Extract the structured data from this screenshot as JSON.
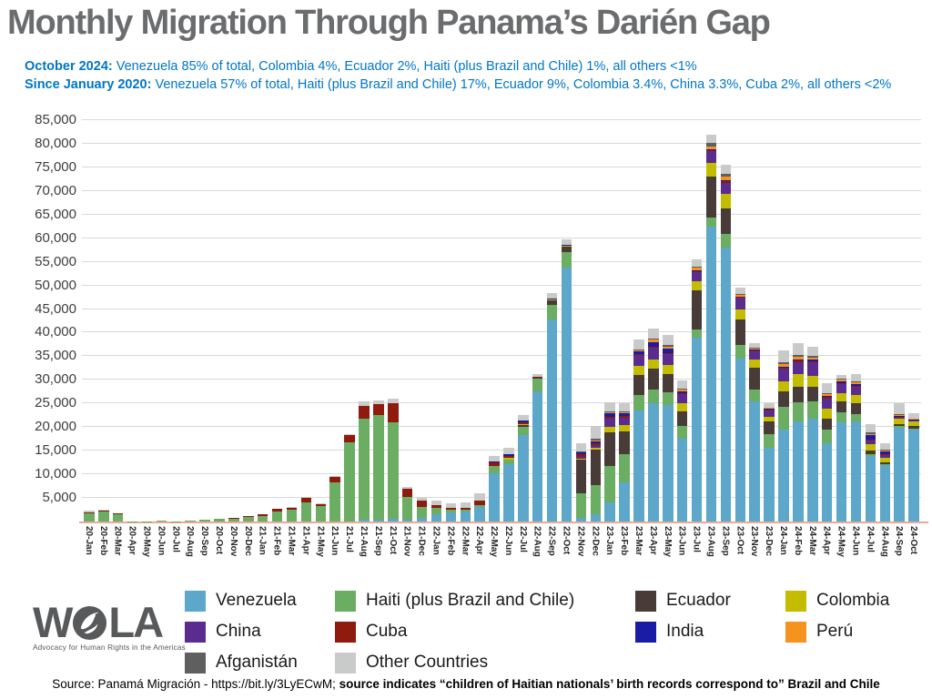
{
  "title": "Monthly Migration Through Panama’s Darién Gap",
  "subtitle": {
    "line1": {
      "lead": "October 2024:",
      "rest": " Venezuela 85% of total, Colombia 4%, Ecuador 2%, Haiti (plus Brazil and Chile) 1%, all others <1%"
    },
    "line2": {
      "lead": "Since January 2020:",
      "rest": " Venezuela 57% of total, Haiti (plus Brazil and Chile) 17%, Ecuador 9%, Colombia 3.4%, China 3.3%, Cuba 2%, all others <2%"
    }
  },
  "chart_data": {
    "type": "bar",
    "stacked": true,
    "title": "Monthly Migration Through Panama’s Darién Gap",
    "xlabel": "",
    "ylabel": "",
    "ylim": [
      0,
      85000
    ],
    "ytick_step": 5000,
    "grid": true,
    "legend_position": "bottom",
    "categories": [
      "20-Jan",
      "20-Feb",
      "20-Mar",
      "20-Apr",
      "20-May",
      "20-Jun",
      "20-Jul",
      "20-Aug",
      "20-Sep",
      "20-Oct",
      "20-Nov",
      "20-Dec",
      "21-Jan",
      "21-Feb",
      "21-Mar",
      "21-Apr",
      "21-May",
      "21-Jun",
      "21-Jul",
      "21-Aug",
      "21-Sep",
      "21-Oct",
      "21-Nov",
      "21-Dec",
      "22-Jan",
      "22-Feb",
      "22-Mar",
      "22-Apr",
      "22-May",
      "22-Jun",
      "22-Jul",
      "22-Aug",
      "22-Sep",
      "22-Oct",
      "22-Nov",
      "22-Dec",
      "23-Jan",
      "23-Feb",
      "23-Mar",
      "23-Apr",
      "23-May",
      "23-Jun",
      "23-Jul",
      "23-Aug",
      "23-Sep",
      "23-Oct",
      "23-Nov",
      "23-Dec",
      "24-Jan",
      "24-Feb",
      "24-Mar",
      "24-Apr",
      "24-May",
      "24-Jun",
      "24-Jul",
      "24-Aug",
      "24-Sep",
      "24-Oct"
    ],
    "series": [
      {
        "name": "Venezuela",
        "color": "#5da7ca",
        "values": [
          0,
          0,
          0,
          0,
          0,
          0,
          0,
          0,
          0,
          0,
          0,
          0,
          0,
          0,
          0,
          0,
          0,
          0,
          0,
          300,
          400,
          500,
          350,
          800,
          1600,
          2000,
          2200,
          3100,
          10300,
          12100,
          18300,
          27600,
          42700,
          53700,
          700,
          1500,
          4000,
          8200,
          23600,
          25000,
          24700,
          17600,
          39000,
          62500,
          58000,
          34500,
          25400,
          15700,
          19500,
          21300,
          21800,
          16500,
          21100,
          21200,
          13800,
          11900,
          19900,
          19500
        ]
      },
      {
        "name": "Haiti (plus Brazil and Chile)",
        "color": "#6bad62",
        "values": [
          1800,
          2100,
          1600,
          20,
          30,
          250,
          50,
          100,
          300,
          500,
          650,
          1000,
          1100,
          2200,
          2500,
          4100,
          3200,
          8200,
          16700,
          21400,
          22200,
          20500,
          4900,
          2300,
          1300,
          450,
          350,
          450,
          1500,
          1100,
          1800,
          2600,
          3200,
          3300,
          5200,
          6200,
          7700,
          6100,
          3200,
          2900,
          2700,
          2600,
          1700,
          1900,
          2900,
          2900,
          2600,
          2900,
          4800,
          4000,
          3700,
          2900,
          2100,
          1600,
          400,
          250,
          300,
          250
        ]
      },
      {
        "name": "Ecuador",
        "color": "#483b38",
        "values": [
          0,
          0,
          0,
          0,
          0,
          0,
          0,
          0,
          0,
          0,
          0,
          0,
          0,
          0,
          0,
          0,
          0,
          0,
          0,
          0,
          0,
          0,
          0,
          0,
          0,
          0,
          0,
          0,
          0,
          0,
          300,
          350,
          900,
          1200,
          7200,
          7600,
          7100,
          4800,
          4200,
          4400,
          3900,
          3200,
          8300,
          8600,
          5500,
          5400,
          4600,
          2600,
          3200,
          3300,
          3000,
          2400,
          2300,
          2200,
          800,
          400,
          500,
          500
        ]
      },
      {
        "name": "Colombia",
        "color": "#c3bc00",
        "values": [
          0,
          0,
          0,
          0,
          0,
          0,
          0,
          0,
          0,
          0,
          0,
          0,
          0,
          0,
          0,
          0,
          0,
          0,
          0,
          0,
          0,
          0,
          0,
          0,
          0,
          0,
          0,
          0,
          0,
          300,
          200,
          0,
          150,
          200,
          300,
          400,
          1300,
          1300,
          1900,
          2100,
          1900,
          1600,
          1800,
          2900,
          2900,
          2200,
          1800,
          1000,
          2250,
          2600,
          2400,
          2100,
          1700,
          1800,
          1300,
          1000,
          1000,
          900
        ]
      },
      {
        "name": "China",
        "color": "#5b2c8f",
        "values": [
          0,
          0,
          0,
          0,
          0,
          0,
          0,
          0,
          0,
          0,
          0,
          0,
          0,
          0,
          0,
          0,
          0,
          0,
          0,
          0,
          0,
          0,
          0,
          0,
          0,
          0,
          0,
          0,
          0,
          0,
          0,
          0,
          0,
          0,
          300,
          500,
          1600,
          1600,
          2400,
          2400,
          2300,
          1900,
          2000,
          2600,
          2400,
          2400,
          1600,
          1300,
          2550,
          2600,
          2900,
          2100,
          1900,
          1700,
          900,
          500,
          300,
          200
        ]
      },
      {
        "name": "Cuba",
        "color": "#8e1b0e",
        "values": [
          200,
          200,
          100,
          0,
          0,
          0,
          0,
          0,
          50,
          50,
          100,
          150,
          350,
          450,
          400,
          1000,
          500,
          1200,
          1600,
          2800,
          2200,
          4000,
          1600,
          1300,
          600,
          450,
          300,
          900,
          800,
          400,
          500,
          150,
          150,
          100,
          500,
          400,
          500,
          400,
          200,
          300,
          250,
          200,
          300,
          200,
          450,
          200,
          250,
          200,
          250,
          250,
          200,
          450,
          300,
          300,
          200,
          200,
          150,
          100
        ]
      },
      {
        "name": "India",
        "color": "#1b1ca5",
        "values": [
          0,
          0,
          0,
          0,
          0,
          0,
          0,
          0,
          0,
          0,
          0,
          0,
          0,
          0,
          0,
          0,
          0,
          0,
          0,
          0,
          0,
          0,
          0,
          0,
          0,
          0,
          0,
          0,
          200,
          400,
          300,
          0,
          150,
          150,
          400,
          400,
          800,
          600,
          600,
          900,
          800,
          400,
          200,
          200,
          200,
          100,
          150,
          150,
          250,
          300,
          250,
          150,
          200,
          300,
          900,
          600,
          200,
          150
        ]
      },
      {
        "name": "Perú",
        "color": "#f6921e",
        "values": [
          0,
          0,
          0,
          0,
          0,
          0,
          0,
          0,
          0,
          0,
          0,
          0,
          0,
          0,
          0,
          0,
          0,
          0,
          0,
          0,
          0,
          0,
          0,
          0,
          0,
          0,
          0,
          0,
          0,
          0,
          0,
          0,
          0,
          0,
          0,
          200,
          100,
          100,
          150,
          500,
          500,
          400,
          400,
          600,
          800,
          300,
          250,
          200,
          500,
          500,
          500,
          300,
          400,
          400,
          300,
          200,
          200,
          100
        ]
      },
      {
        "name": "Afganistán",
        "color": "#5f5f5f",
        "values": [
          0,
          0,
          0,
          0,
          0,
          0,
          0,
          0,
          0,
          0,
          0,
          0,
          0,
          0,
          0,
          0,
          0,
          0,
          0,
          0,
          0,
          0,
          0,
          0,
          0,
          0,
          0,
          0,
          0,
          0,
          0,
          0,
          0,
          0,
          200,
          300,
          200,
          200,
          250,
          300,
          300,
          250,
          300,
          600,
          450,
          200,
          250,
          150,
          450,
          500,
          300,
          250,
          250,
          200,
          300,
          200,
          150,
          100
        ]
      },
      {
        "name": "Other Countries",
        "color": "#c9caca",
        "values": [
          300,
          200,
          100,
          10,
          10,
          10,
          0,
          0,
          60,
          10,
          50,
          50,
          50,
          100,
          100,
          200,
          100,
          200,
          300,
          900,
          900,
          1000,
          500,
          700,
          1000,
          1000,
          1300,
          1450,
          1000,
          1300,
          1200,
          600,
          1100,
          1200,
          1700,
          2800,
          1900,
          1700,
          2100,
          2100,
          2100,
          1800,
          1500,
          1900,
          1900,
          1400,
          800,
          800,
          2500,
          2400,
          2000,
          2200,
          800,
          1600,
          1700,
          1300,
          2300,
          1100
        ]
      }
    ]
  },
  "branding": {
    "logo_w": "W",
    "logo_la": "LA",
    "tagline": "Advocacy for Human Rights in the Americas"
  },
  "footer": {
    "regular": "Source: Panamá Migración - https://bit.ly/3LyECwM; ",
    "bold": "source indicates “children of Haitian nationals’ birth records correspond to” Brazil and Chile"
  },
  "colors": {
    "title_gray": "#6b6c6e",
    "subtitle_blue": "#0076c6",
    "gridline": "#d9d9d9",
    "baseline_salmon": "#e9a99b"
  }
}
